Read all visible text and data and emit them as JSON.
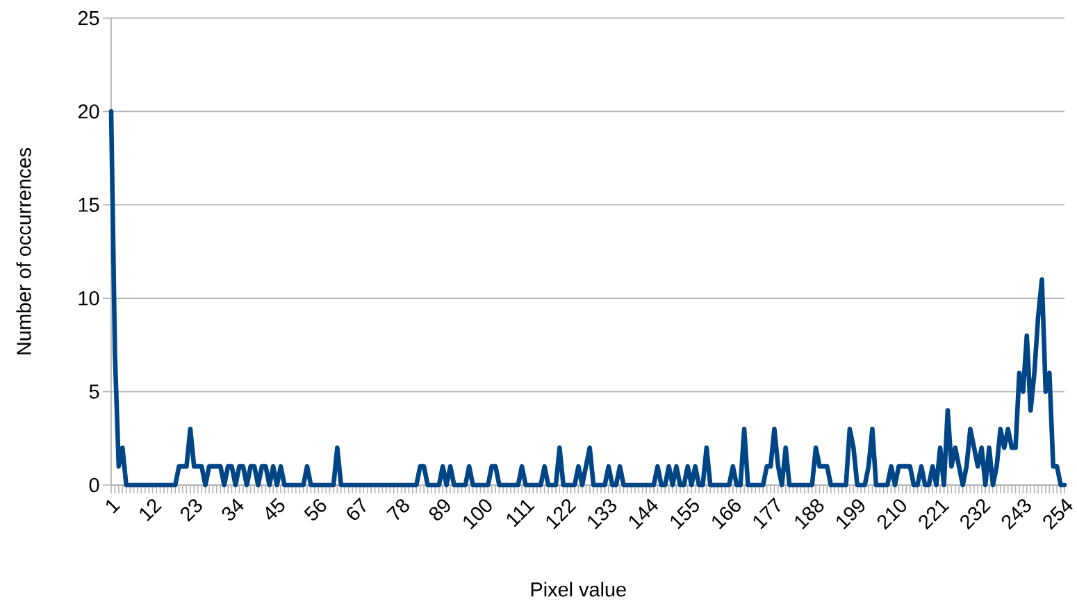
{
  "chart_data": {
    "type": "line",
    "xlabel": "Pixel value",
    "ylabel": "Number of occurrences",
    "categories": [
      "1",
      null,
      null,
      null,
      null,
      null,
      null,
      null,
      null,
      null,
      null,
      "12",
      null,
      null,
      null,
      null,
      null,
      null,
      null,
      null,
      null,
      null,
      "23",
      null,
      null,
      null,
      null,
      null,
      null,
      null,
      null,
      null,
      null,
      "34",
      null,
      null,
      null,
      null,
      null,
      null,
      null,
      null,
      null,
      null,
      "45",
      null,
      null,
      null,
      null,
      null,
      null,
      null,
      null,
      null,
      null,
      "56",
      null,
      null,
      null,
      null,
      null,
      null,
      null,
      null,
      null,
      null,
      "67",
      null,
      null,
      null,
      null,
      null,
      null,
      null,
      null,
      null,
      null,
      "78",
      null,
      null,
      null,
      null,
      null,
      null,
      null,
      null,
      null,
      null,
      "89",
      null,
      null,
      null,
      null,
      null,
      null,
      null,
      null,
      null,
      null,
      "100",
      null,
      null,
      null,
      null,
      null,
      null,
      null,
      null,
      null,
      null,
      "111",
      null,
      null,
      null,
      null,
      null,
      null,
      null,
      null,
      null,
      null,
      "122",
      null,
      null,
      null,
      null,
      null,
      null,
      null,
      null,
      null,
      null,
      "133",
      null,
      null,
      null,
      null,
      null,
      null,
      null,
      null,
      null,
      null,
      "144",
      null,
      null,
      null,
      null,
      null,
      null,
      null,
      null,
      null,
      null,
      "155",
      null,
      null,
      null,
      null,
      null,
      null,
      null,
      null,
      null,
      null,
      "166",
      null,
      null,
      null,
      null,
      null,
      null,
      null,
      null,
      null,
      null,
      "177",
      null,
      null,
      null,
      null,
      null,
      null,
      null,
      null,
      null,
      null,
      "188",
      null,
      null,
      null,
      null,
      null,
      null,
      null,
      null,
      null,
      null,
      "199",
      null,
      null,
      null,
      null,
      null,
      null,
      null,
      null,
      null,
      null,
      "210",
      null,
      null,
      null,
      null,
      null,
      null,
      null,
      null,
      null,
      null,
      "221",
      null,
      null,
      null,
      null,
      null,
      null,
      null,
      null,
      null,
      null,
      "232",
      null,
      null,
      null,
      null,
      null,
      null,
      null,
      null,
      null,
      null,
      "243",
      null,
      null,
      null,
      null,
      null,
      null,
      null,
      null,
      null,
      null,
      "254"
    ],
    "series": [
      {
        "color": "#004586",
        "values": [
          20,
          7,
          1,
          2,
          0,
          0,
          0,
          0,
          0,
          0,
          0,
          0,
          0,
          0,
          0,
          0,
          0,
          0,
          1,
          1,
          1,
          3,
          1,
          1,
          1,
          0,
          1,
          1,
          1,
          1,
          0,
          1,
          1,
          0,
          1,
          1,
          0,
          1,
          1,
          0,
          1,
          1,
          0,
          1,
          0,
          1,
          0,
          0,
          0,
          0,
          0,
          0,
          1,
          0,
          0,
          0,
          0,
          0,
          0,
          0,
          2,
          0,
          0,
          0,
          0,
          0,
          0,
          0,
          0,
          0,
          0,
          0,
          0,
          0,
          0,
          0,
          0,
          0,
          0,
          0,
          0,
          0,
          1,
          1,
          0,
          0,
          0,
          0,
          1,
          0,
          1,
          0,
          0,
          0,
          0,
          1,
          0,
          0,
          0,
          0,
          0,
          1,
          1,
          0,
          0,
          0,
          0,
          0,
          0,
          1,
          0,
          0,
          0,
          0,
          0,
          1,
          0,
          0,
          0,
          2,
          0,
          0,
          0,
          0,
          1,
          0,
          1,
          2,
          0,
          0,
          0,
          0,
          1,
          0,
          0,
          1,
          0,
          0,
          0,
          0,
          0,
          0,
          0,
          0,
          0,
          1,
          0,
          0,
          1,
          0,
          1,
          0,
          0,
          1,
          0,
          1,
          0,
          0,
          2,
          0,
          0,
          0,
          0,
          0,
          0,
          1,
          0,
          0,
          3,
          0,
          0,
          0,
          0,
          0,
          1,
          1,
          3,
          1,
          0,
          2,
          0,
          0,
          0,
          0,
          0,
          0,
          0,
          2,
          1,
          1,
          1,
          0,
          0,
          0,
          0,
          0,
          3,
          2,
          0,
          0,
          0,
          1,
          3,
          0,
          0,
          0,
          0,
          1,
          0,
          1,
          1,
          1,
          1,
          0,
          0,
          1,
          0,
          0,
          1,
          0,
          2,
          0,
          4,
          1,
          2,
          1,
          0,
          1,
          3,
          2,
          1,
          2,
          0,
          2,
          0,
          1,
          3,
          2,
          3,
          2,
          2,
          6,
          5,
          8,
          4,
          6,
          9,
          11,
          5,
          6,
          1,
          1,
          0,
          0
        ]
      }
    ],
    "ylim": [
      0,
      25
    ],
    "yticks": [
      0,
      5,
      10,
      15,
      20,
      25
    ],
    "grid": "y",
    "marker": "none",
    "line_style": "solid"
  }
}
